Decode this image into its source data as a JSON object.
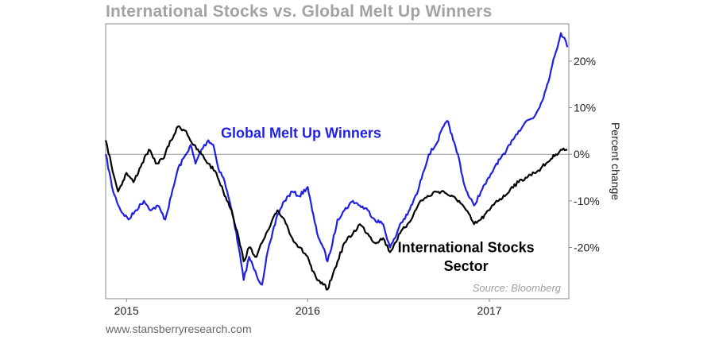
{
  "chart_data": {
    "type": "line",
    "title": "International Stocks vs. Global Melt Up Winners",
    "ylabel": "Percent change",
    "xlim": [
      "2014-11-20",
      "2017-06-10"
    ],
    "ylim": [
      -31,
      28
    ],
    "x_ticks": [
      {
        "date": "2015-01-01",
        "label": "2015"
      },
      {
        "date": "2016-01-01",
        "label": "2016"
      },
      {
        "date": "2017-01-01",
        "label": "2017"
      }
    ],
    "y_ticks": [
      {
        "value": 20,
        "label": "20%"
      },
      {
        "value": 10,
        "label": "10%"
      },
      {
        "value": 0,
        "label": "0%"
      },
      {
        "value": -10,
        "label": "-10%"
      },
      {
        "value": -20,
        "label": "-20%"
      }
    ],
    "grid": false,
    "zero_line": true,
    "series": [
      {
        "name": "Global Melt Up Winners",
        "color": "#1f1fe6",
        "points": [
          [
            "2014-11-20",
            0
          ],
          [
            "2014-12-05",
            -8
          ],
          [
            "2014-12-20",
            -12
          ],
          [
            "2015-01-05",
            -14
          ],
          [
            "2015-01-20",
            -12
          ],
          [
            "2015-02-05",
            -10
          ],
          [
            "2015-02-20",
            -12
          ],
          [
            "2015-03-05",
            -11
          ],
          [
            "2015-03-20",
            -14
          ],
          [
            "2015-04-01",
            -9
          ],
          [
            "2015-04-15",
            -3
          ],
          [
            "2015-05-01",
            0
          ],
          [
            "2015-05-10",
            2
          ],
          [
            "2015-05-20",
            -2
          ],
          [
            "2015-06-01",
            1
          ],
          [
            "2015-06-15",
            3
          ],
          [
            "2015-06-25",
            2
          ],
          [
            "2015-07-05",
            -3
          ],
          [
            "2015-07-15",
            -5
          ],
          [
            "2015-07-25",
            -9
          ],
          [
            "2015-08-05",
            -14
          ],
          [
            "2015-08-15",
            -20
          ],
          [
            "2015-08-25",
            -27
          ],
          [
            "2015-09-05",
            -22
          ],
          [
            "2015-09-20",
            -26
          ],
          [
            "2015-10-01",
            -28
          ],
          [
            "2015-10-10",
            -22
          ],
          [
            "2015-10-20",
            -18
          ],
          [
            "2015-11-01",
            -13
          ],
          [
            "2015-11-15",
            -10
          ],
          [
            "2015-12-01",
            -8
          ],
          [
            "2015-12-15",
            -9
          ],
          [
            "2016-01-01",
            -7
          ],
          [
            "2016-01-10",
            -12
          ],
          [
            "2016-01-20",
            -17
          ],
          [
            "2016-02-01",
            -20
          ],
          [
            "2016-02-10",
            -23
          ],
          [
            "2016-02-20",
            -19
          ],
          [
            "2016-03-01",
            -14
          ],
          [
            "2016-03-15",
            -12
          ],
          [
            "2016-04-01",
            -10
          ],
          [
            "2016-04-15",
            -11
          ],
          [
            "2016-05-01",
            -12
          ],
          [
            "2016-05-15",
            -14
          ],
          [
            "2016-06-01",
            -15
          ],
          [
            "2016-06-15",
            -20
          ],
          [
            "2016-06-25",
            -18
          ],
          [
            "2016-07-05",
            -15
          ],
          [
            "2016-07-20",
            -13
          ],
          [
            "2016-08-01",
            -10
          ],
          [
            "2016-08-10",
            -8
          ],
          [
            "2016-08-20",
            -4
          ],
          [
            "2016-09-01",
            0
          ],
          [
            "2016-09-15",
            2
          ],
          [
            "2016-10-01",
            6
          ],
          [
            "2016-10-10",
            7
          ],
          [
            "2016-10-20",
            3
          ],
          [
            "2016-11-01",
            -1
          ],
          [
            "2016-11-10",
            -6
          ],
          [
            "2016-11-20",
            -9
          ],
          [
            "2016-12-01",
            -11
          ],
          [
            "2016-12-15",
            -8
          ],
          [
            "2017-01-01",
            -5
          ],
          [
            "2017-01-15",
            -2
          ],
          [
            "2017-02-01",
            0
          ],
          [
            "2017-02-15",
            3
          ],
          [
            "2017-03-01",
            5
          ],
          [
            "2017-03-15",
            7
          ],
          [
            "2017-04-01",
            8
          ],
          [
            "2017-04-15",
            11
          ],
          [
            "2017-04-25",
            14
          ],
          [
            "2017-05-05",
            18
          ],
          [
            "2017-05-15",
            22
          ],
          [
            "2017-05-25",
            26
          ],
          [
            "2017-06-01",
            25
          ],
          [
            "2017-06-07",
            23
          ]
        ]
      },
      {
        "name": "International Stocks Sector",
        "color": "#000000",
        "points": [
          [
            "2014-11-20",
            3
          ],
          [
            "2014-12-01",
            -2
          ],
          [
            "2014-12-15",
            -8
          ],
          [
            "2015-01-01",
            -4
          ],
          [
            "2015-01-15",
            -6
          ],
          [
            "2015-02-01",
            -2
          ],
          [
            "2015-02-15",
            1
          ],
          [
            "2015-03-01",
            -2
          ],
          [
            "2015-03-15",
            -1
          ],
          [
            "2015-04-01",
            3
          ],
          [
            "2015-04-15",
            6
          ],
          [
            "2015-05-01",
            5
          ],
          [
            "2015-05-15",
            2
          ],
          [
            "2015-06-01",
            0
          ],
          [
            "2015-06-15",
            -2
          ],
          [
            "2015-07-01",
            -4
          ],
          [
            "2015-07-15",
            -8
          ],
          [
            "2015-08-01",
            -12
          ],
          [
            "2015-08-15",
            -18
          ],
          [
            "2015-08-25",
            -23
          ],
          [
            "2015-09-05",
            -20
          ],
          [
            "2015-09-20",
            -22
          ],
          [
            "2015-10-01",
            -19
          ],
          [
            "2015-10-15",
            -16
          ],
          [
            "2015-11-01",
            -12
          ],
          [
            "2015-11-15",
            -14
          ],
          [
            "2015-12-01",
            -18
          ],
          [
            "2015-12-15",
            -20
          ],
          [
            "2016-01-01",
            -22
          ],
          [
            "2016-01-10",
            -25
          ],
          [
            "2016-01-20",
            -27
          ],
          [
            "2016-02-01",
            -28
          ],
          [
            "2016-02-10",
            -29
          ],
          [
            "2016-02-20",
            -26
          ],
          [
            "2016-03-01",
            -23
          ],
          [
            "2016-03-15",
            -19
          ],
          [
            "2016-04-01",
            -17
          ],
          [
            "2016-04-15",
            -15
          ],
          [
            "2016-05-01",
            -17
          ],
          [
            "2016-05-15",
            -19
          ],
          [
            "2016-06-01",
            -18
          ],
          [
            "2016-06-15",
            -21
          ],
          [
            "2016-06-25",
            -19
          ],
          [
            "2016-07-05",
            -17
          ],
          [
            "2016-07-20",
            -15
          ],
          [
            "2016-08-01",
            -13
          ],
          [
            "2016-08-15",
            -10
          ],
          [
            "2016-09-01",
            -9
          ],
          [
            "2016-09-15",
            -8
          ],
          [
            "2016-10-01",
            -8
          ],
          [
            "2016-10-15",
            -9
          ],
          [
            "2016-11-01",
            -10
          ],
          [
            "2016-11-15",
            -12
          ],
          [
            "2016-12-01",
            -15
          ],
          [
            "2016-12-15",
            -14
          ],
          [
            "2017-01-01",
            -12
          ],
          [
            "2017-01-15",
            -10
          ],
          [
            "2017-02-01",
            -9
          ],
          [
            "2017-02-15",
            -7
          ],
          [
            "2017-03-01",
            -6
          ],
          [
            "2017-03-15",
            -5
          ],
          [
            "2017-04-01",
            -4
          ],
          [
            "2017-04-15",
            -3
          ],
          [
            "2017-04-25",
            -2
          ],
          [
            "2017-05-05",
            -1
          ],
          [
            "2017-05-15",
            0
          ],
          [
            "2017-05-25",
            1
          ],
          [
            "2017-06-07",
            1
          ]
        ]
      }
    ],
    "annotations": [
      {
        "text": "Global Melt Up Winners",
        "color": "#1f1fe6",
        "date": "2015-11-10",
        "value": 3.5
      },
      {
        "text": "International Stocks",
        "color": "#000000",
        "date": "2016-11-15",
        "value": -21
      },
      {
        "text": "Sector",
        "color": "#000000",
        "date": "2016-11-15",
        "value": -25
      },
      {
        "text": "Source: Bloomberg",
        "color": "#a0a0a0",
        "date": "2017-03-15",
        "value": -29.5
      }
    ]
  },
  "footer": "www.stansberryresearch.com"
}
